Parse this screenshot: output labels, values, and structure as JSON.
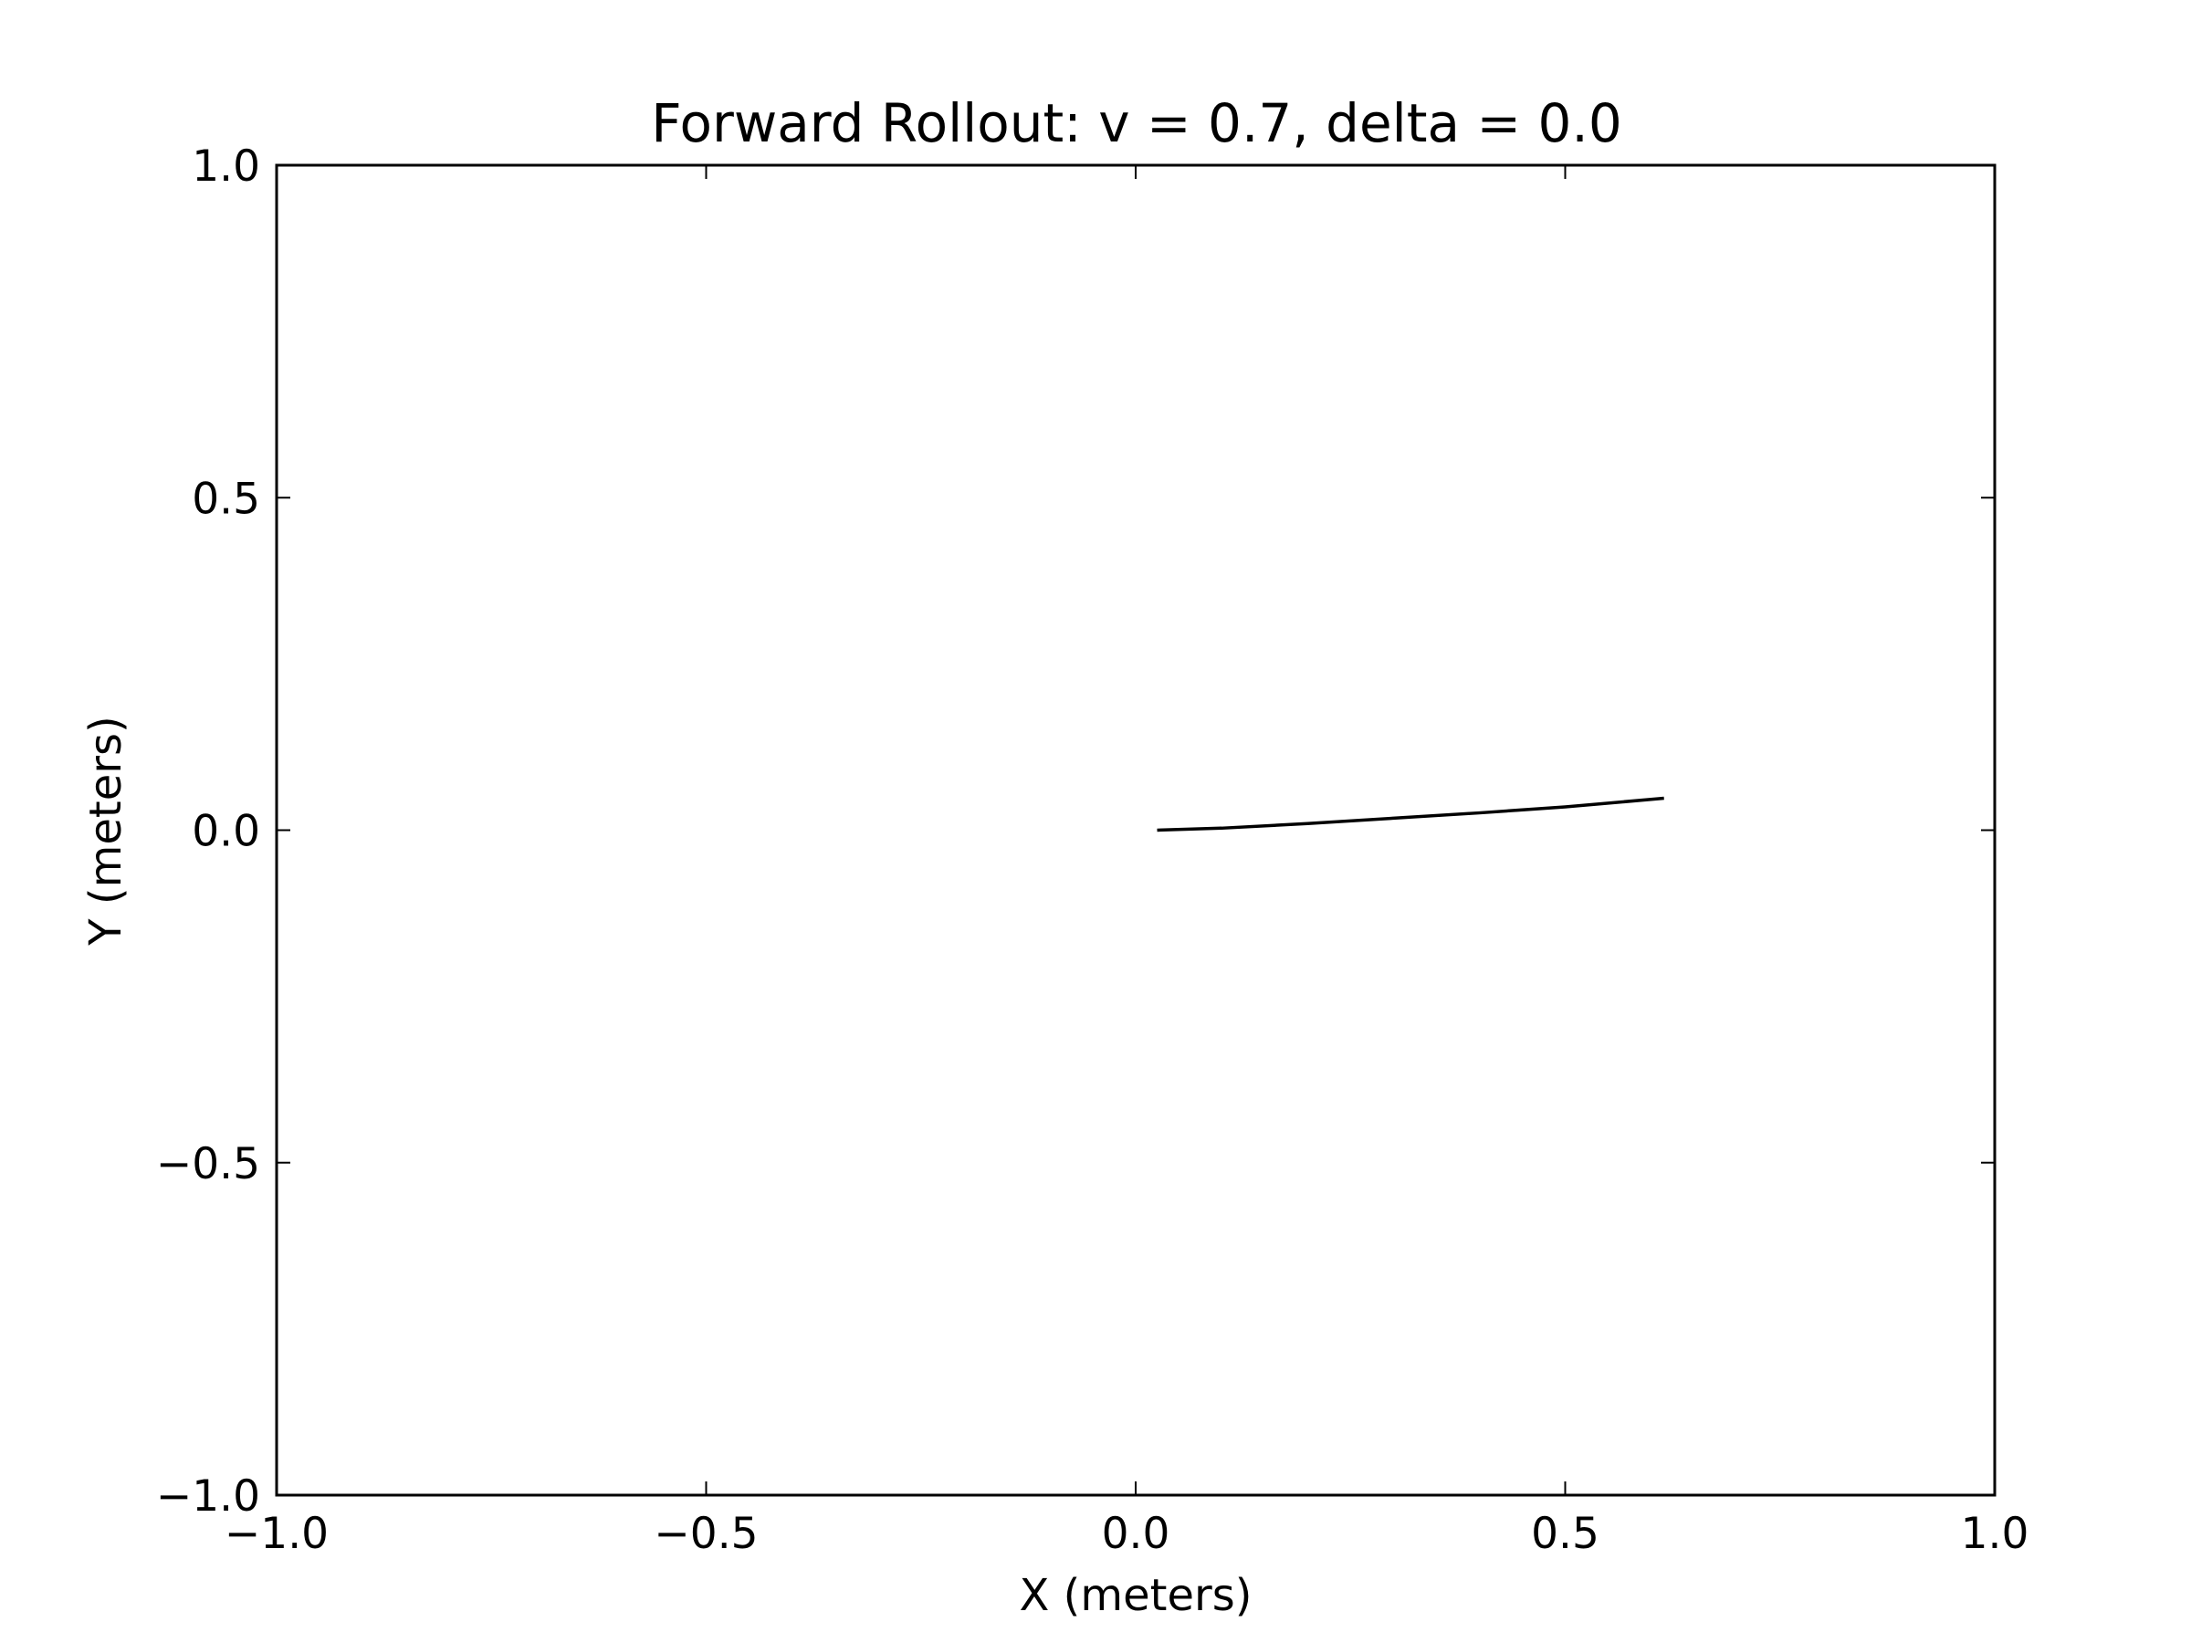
{
  "chart_data": {
    "type": "line",
    "title": "Forward Rollout: v = 0.7, delta = 0.0",
    "xlabel": "X (meters)",
    "ylabel": "Y (meters)",
    "xlim": [
      -1.0,
      1.0
    ],
    "ylim": [
      -1.0,
      1.0
    ],
    "x_ticks": [
      -1.0,
      -0.5,
      0.0,
      0.5,
      1.0
    ],
    "y_ticks": [
      -1.0,
      -0.5,
      0.0,
      0.5,
      1.0
    ],
    "x_tick_labels": [
      "−1.0",
      "−0.5",
      "0.0",
      "0.5",
      "1.0"
    ],
    "y_tick_labels": [
      "−1.0",
      "−0.5",
      "0.0",
      "0.5",
      "1.0"
    ],
    "grid": false,
    "series": [
      {
        "color": "#000000",
        "x": [
          0.025,
          0.1,
          0.2,
          0.3,
          0.4,
          0.5,
          0.615
        ],
        "y": [
          0.0,
          0.003,
          0.01,
          0.018,
          0.026,
          0.035,
          0.048
        ]
      }
    ]
  }
}
